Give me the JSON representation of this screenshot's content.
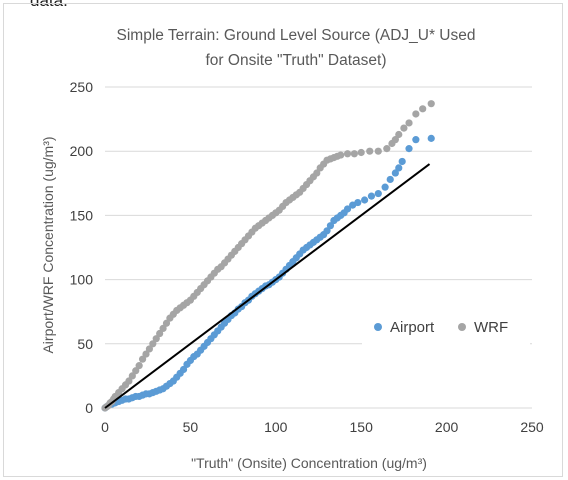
{
  "page": {
    "top_text": "data."
  },
  "chart_data": {
    "type": "scatter",
    "title_lines": [
      "Simple Terrain: Ground Level Source (ADJ_U* Used",
      "for Onsite \"Truth\" Dataset)"
    ],
    "xlabel": "\"Truth\" (Onsite) Concentration (ug/m³)",
    "ylabel": "Airport/WRF Concentration (ug/m³)",
    "xlim": [
      0,
      250
    ],
    "ylim": [
      0,
      250
    ],
    "xticks": [
      "0",
      "50",
      "100",
      "150",
      "200",
      "250"
    ],
    "yticks": [
      "0",
      "50",
      "100",
      "150",
      "200",
      "250"
    ],
    "grid": "horizontal",
    "legend_position": "right",
    "one_to_one_line": {
      "x": [
        0,
        190
      ],
      "y": [
        0,
        190
      ],
      "color": "#000000"
    },
    "series": [
      {
        "name": "Airport",
        "color": "#5b9bd5",
        "points": [
          [
            0,
            0
          ],
          [
            1,
            1
          ],
          [
            2,
            2
          ],
          [
            3,
            3
          ],
          [
            4,
            3
          ],
          [
            5,
            4
          ],
          [
            6,
            4
          ],
          [
            8,
            5
          ],
          [
            10,
            6
          ],
          [
            12,
            7
          ],
          [
            14,
            7
          ],
          [
            16,
            8
          ],
          [
            18,
            9
          ],
          [
            20,
            9
          ],
          [
            22,
            10
          ],
          [
            24,
            11
          ],
          [
            26,
            11
          ],
          [
            28,
            12
          ],
          [
            30,
            13
          ],
          [
            32,
            14
          ],
          [
            34,
            15
          ],
          [
            36,
            17
          ],
          [
            38,
            19
          ],
          [
            40,
            21
          ],
          [
            42,
            24
          ],
          [
            44,
            27
          ],
          [
            46,
            30
          ],
          [
            48,
            34
          ],
          [
            50,
            37
          ],
          [
            52,
            40
          ],
          [
            54,
            42
          ],
          [
            56,
            45
          ],
          [
            58,
            48
          ],
          [
            60,
            51
          ],
          [
            62,
            54
          ],
          [
            64,
            57
          ],
          [
            66,
            60
          ],
          [
            68,
            63
          ],
          [
            70,
            66
          ],
          [
            72,
            69
          ],
          [
            74,
            72
          ],
          [
            76,
            74
          ],
          [
            78,
            77
          ],
          [
            80,
            79
          ],
          [
            82,
            82
          ],
          [
            84,
            84
          ],
          [
            86,
            87
          ],
          [
            88,
            89
          ],
          [
            90,
            91
          ],
          [
            92,
            93
          ],
          [
            94,
            95
          ],
          [
            96,
            96
          ],
          [
            98,
            98
          ],
          [
            100,
            100
          ],
          [
            102,
            102
          ],
          [
            104,
            105
          ],
          [
            106,
            108
          ],
          [
            108,
            111
          ],
          [
            110,
            114
          ],
          [
            112,
            117
          ],
          [
            114,
            120
          ],
          [
            116,
            123
          ],
          [
            118,
            125
          ],
          [
            120,
            127
          ],
          [
            122,
            129
          ],
          [
            124,
            131
          ],
          [
            126,
            133
          ],
          [
            128,
            135
          ],
          [
            130,
            138
          ],
          [
            132,
            142
          ],
          [
            134,
            146
          ],
          [
            136,
            148
          ],
          [
            138,
            150
          ],
          [
            140,
            152
          ],
          [
            142,
            155
          ],
          [
            145,
            158
          ],
          [
            148,
            160
          ],
          [
            152,
            162
          ],
          [
            156,
            165
          ],
          [
            160,
            167
          ],
          [
            164,
            172
          ],
          [
            167,
            178
          ],
          [
            170,
            183
          ],
          [
            172,
            187
          ],
          [
            174,
            192
          ],
          [
            178,
            202
          ],
          [
            182,
            209
          ],
          [
            191,
            210
          ]
        ]
      },
      {
        "name": "WRF",
        "color": "#a5a5a5",
        "points": [
          [
            0,
            0
          ],
          [
            1,
            1
          ],
          [
            2,
            2
          ],
          [
            3,
            4
          ],
          [
            4,
            5
          ],
          [
            5,
            7
          ],
          [
            6,
            9
          ],
          [
            8,
            12
          ],
          [
            10,
            15
          ],
          [
            12,
            18
          ],
          [
            14,
            21
          ],
          [
            16,
            25
          ],
          [
            18,
            29
          ],
          [
            20,
            33
          ],
          [
            22,
            38
          ],
          [
            24,
            42
          ],
          [
            26,
            46
          ],
          [
            28,
            50
          ],
          [
            30,
            54
          ],
          [
            32,
            58
          ],
          [
            34,
            62
          ],
          [
            36,
            66
          ],
          [
            38,
            70
          ],
          [
            40,
            73
          ],
          [
            42,
            76
          ],
          [
            44,
            78
          ],
          [
            46,
            80
          ],
          [
            48,
            82
          ],
          [
            50,
            84
          ],
          [
            52,
            87
          ],
          [
            54,
            90
          ],
          [
            56,
            93
          ],
          [
            58,
            96
          ],
          [
            60,
            99
          ],
          [
            62,
            102
          ],
          [
            64,
            105
          ],
          [
            66,
            108
          ],
          [
            68,
            110
          ],
          [
            70,
            113
          ],
          [
            72,
            116
          ],
          [
            74,
            119
          ],
          [
            76,
            122
          ],
          [
            78,
            125
          ],
          [
            80,
            128
          ],
          [
            82,
            131
          ],
          [
            84,
            134
          ],
          [
            86,
            137
          ],
          [
            88,
            140
          ],
          [
            90,
            142
          ],
          [
            92,
            144
          ],
          [
            94,
            146
          ],
          [
            96,
            148
          ],
          [
            98,
            150
          ],
          [
            100,
            152
          ],
          [
            102,
            154
          ],
          [
            104,
            157
          ],
          [
            106,
            160
          ],
          [
            108,
            162
          ],
          [
            110,
            164
          ],
          [
            112,
            166
          ],
          [
            114,
            168
          ],
          [
            116,
            171
          ],
          [
            118,
            174
          ],
          [
            120,
            177
          ],
          [
            122,
            180
          ],
          [
            124,
            183
          ],
          [
            126,
            187
          ],
          [
            128,
            190
          ],
          [
            130,
            193
          ],
          [
            132,
            194
          ],
          [
            134,
            195
          ],
          [
            136,
            196
          ],
          [
            138,
            197
          ],
          [
            142,
            198
          ],
          [
            146,
            198
          ],
          [
            150,
            199
          ],
          [
            155,
            200
          ],
          [
            160,
            200
          ],
          [
            165,
            202
          ],
          [
            168,
            206
          ],
          [
            170,
            209
          ],
          [
            172,
            213
          ],
          [
            175,
            218
          ],
          [
            178,
            222
          ],
          [
            182,
            229
          ],
          [
            186,
            233
          ],
          [
            191,
            237
          ]
        ]
      }
    ]
  }
}
